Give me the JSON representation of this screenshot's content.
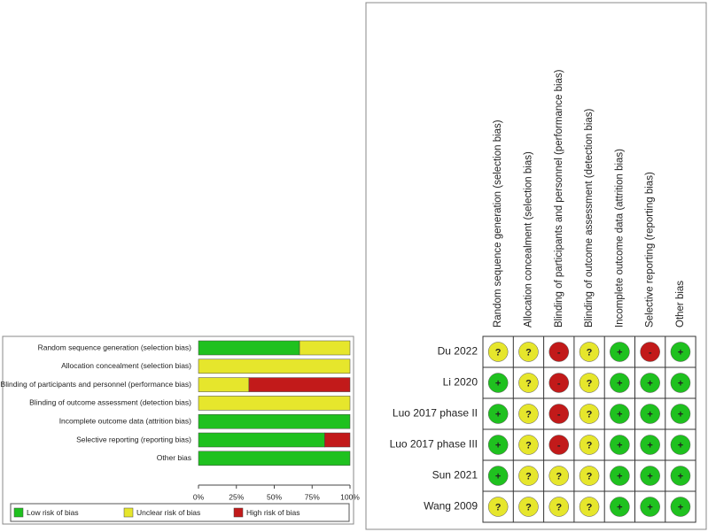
{
  "chart_data": [
    {
      "type": "stacked-barh",
      "categories": [
        "Random sequence generation (selection bias)",
        "Allocation concealment (selection bias)",
        "Blinding of participants and personnel (performance bias)",
        "Blinding of outcome assessment (detection bias)",
        "Incomplete outcome data (attrition bias)",
        "Selective reporting (reporting bias)",
        "Other bias"
      ],
      "series": [
        {
          "name": "Low risk of bias",
          "color": "#1fc11f",
          "values": [
            66.7,
            0,
            0,
            0,
            100,
            83.3,
            100
          ]
        },
        {
          "name": "Unclear risk of bias",
          "color": "#e6e62c",
          "values": [
            33.3,
            100,
            33.3,
            100,
            0,
            0,
            0
          ]
        },
        {
          "name": "High risk of bias",
          "color": "#c21a1a",
          "values": [
            0,
            0,
            66.7,
            0,
            0,
            16.7,
            0
          ]
        }
      ],
      "xlim": [
        0,
        100
      ],
      "xticks": [
        {
          "value": 0,
          "label": "0%"
        },
        {
          "value": 25,
          "label": "25%"
        },
        {
          "value": 50,
          "label": "50%"
        },
        {
          "value": 75,
          "label": "75%"
        },
        {
          "value": 100,
          "label": "100%"
        }
      ]
    },
    {
      "type": "traffic-light",
      "columns": [
        "Random sequence generation (selection bias)",
        "Allocation concealment (selection bias)",
        "Blinding of participants and personnel (performance bias)",
        "Blinding of outcome assessment (detection bias)",
        "Incomplete outcome data (attrition bias)",
        "Selective reporting (reporting bias)",
        "Other bias"
      ],
      "rows": [
        "Du 2022",
        "Li 2020",
        "Luo 2017 phase II",
        "Luo 2017 phase III",
        "Sun 2021",
        "Wang 2009"
      ],
      "cells": [
        [
          "?",
          "?",
          "-",
          "?",
          "+",
          "-",
          "+"
        ],
        [
          "+",
          "?",
          "-",
          "?",
          "+",
          "+",
          "+"
        ],
        [
          "+",
          "?",
          "-",
          "?",
          "+",
          "+",
          "+"
        ],
        [
          "+",
          "?",
          "-",
          "?",
          "+",
          "+",
          "+"
        ],
        [
          "+",
          "?",
          "?",
          "?",
          "+",
          "+",
          "+"
        ],
        [
          "?",
          "?",
          "?",
          "?",
          "+",
          "+",
          "+"
        ]
      ],
      "symbol_colors": {
        "+": "#1fc11f",
        "?": "#e6e62c",
        "-": "#c21a1a"
      }
    }
  ]
}
